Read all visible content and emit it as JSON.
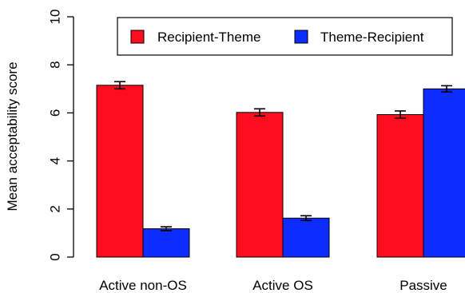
{
  "chart_data": {
    "type": "bar",
    "ylabel": "Mean acceptability score",
    "xlabel": "",
    "title": "",
    "ylim": [
      0,
      10
    ],
    "yticks": [
      0,
      2,
      4,
      6,
      8,
      10
    ],
    "grid": false,
    "legend_position": "top-right",
    "categories": [
      "Active non-OS",
      "Active OS",
      "Passive"
    ],
    "series": [
      {
        "name": "Recipient-Theme",
        "color": "#ff0d1e",
        "values": [
          7.15,
          6.02,
          5.93
        ],
        "error": [
          0.15,
          0.15,
          0.15
        ]
      },
      {
        "name": "Theme-Recipient",
        "color": "#0d2cff",
        "values": [
          1.18,
          1.62,
          7.0
        ],
        "error": [
          0.08,
          0.1,
          0.13
        ]
      }
    ]
  }
}
